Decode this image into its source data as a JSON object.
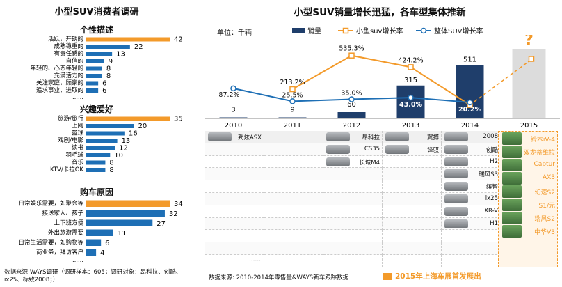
{
  "left": {
    "title": "小型SUV消费者调研",
    "personality": {
      "header": "个性描述",
      "items": [
        {
          "label": "活跃，开朗的",
          "value": 42,
          "highlight": true
        },
        {
          "label": "成熟稳重的",
          "value": 22
        },
        {
          "label": "有责任感的",
          "value": 13
        },
        {
          "label": "自信的",
          "value": 9
        },
        {
          "label": "年轻的、心态年轻的",
          "value": 8
        },
        {
          "label": "充满活力的",
          "value": 8
        },
        {
          "label": "关注家庭，顾家的",
          "value": 6
        },
        {
          "label": "追求事业，进取的",
          "value": 6
        }
      ],
      "more": "……"
    },
    "interests": {
      "header": "兴趣爱好",
      "items": [
        {
          "label": "旅游/旅行",
          "value": 35,
          "highlight": true
        },
        {
          "label": "上网",
          "value": 20
        },
        {
          "label": "篮球",
          "value": 16
        },
        {
          "label": "戏剧/电影",
          "value": 13
        },
        {
          "label": "读书",
          "value": 12
        },
        {
          "label": "羽毛球",
          "value": 10
        },
        {
          "label": "音乐",
          "value": 8
        },
        {
          "label": "KTV/卡拉OK",
          "value": 8
        }
      ],
      "more": "……"
    },
    "reasons": {
      "header": "购车原因",
      "items": [
        {
          "label": "日常娱乐需要，如聚会等",
          "value": 34,
          "highlight": true
        },
        {
          "label": "接送家人、孩子",
          "value": 32
        },
        {
          "label": "上下班方便",
          "value": 27
        },
        {
          "label": "外出旅游需要",
          "value": 11
        },
        {
          "label": "日常生活需要，如购物等",
          "value": 6
        },
        {
          "label": "商业务，拜访客户",
          "value": 4
        }
      ],
      "more": "……"
    },
    "note": "数据来源:WAYS调研（调研样本：605；调研对象：昂科拉、创酷、ix25、标致2008；）"
  },
  "chart_data": {
    "type": "bar",
    "title": "小型SUV销量增长迅猛，各车型集体推新",
    "unit_label": "单位：千辆",
    "categories": [
      "2010",
      "2011",
      "2012",
      "2013",
      "2014",
      "2015"
    ],
    "series": [
      {
        "name": "销量",
        "values": [
          3,
          9,
          60,
          315,
          511,
          null
        ],
        "labels": [
          "3",
          "9",
          "60",
          "315",
          "511",
          ""
        ],
        "color": "#1f3e6b"
      },
      {
        "name": "小型suv增长率",
        "values": [
          null,
          213.2,
          535.3,
          424.2,
          62.3,
          null
        ],
        "labels": [
          "",
          "213.2%",
          "535.3%",
          "424.2%",
          "",
          ""
        ],
        "color": "#f39a2a"
      },
      {
        "name": "整体SUV增长率",
        "values": [
          87.2,
          25.5,
          35.0,
          43.0,
          20.2,
          null
        ],
        "labels": [
          "87.2%",
          "25.5%",
          "35.0%",
          "43.0%",
          "20.2%",
          ""
        ],
        "color": "#1e6fb5"
      }
    ],
    "forecast_mark": "?",
    "legend_position": "top",
    "colors": {
      "forecast_bar": "#dcdcdc"
    }
  },
  "models": {
    "2012": [
      {
        "name": "劲炫ASX"
      }
    ],
    "2013": [
      {
        "name": "昂科拉"
      },
      {
        "name": "CS35"
      },
      {
        "name": "长城M4"
      }
    ],
    "2013b": [
      {
        "name": "翼搏"
      },
      {
        "name": "锋驭"
      }
    ],
    "2014": [
      {
        "name": "2008"
      },
      {
        "name": "创酷"
      },
      {
        "name": "H2"
      },
      {
        "name": "瑞风S3"
      },
      {
        "name": "缤智"
      },
      {
        "name": "ix25"
      },
      {
        "name": "XR-V"
      },
      {
        "name": "H1"
      }
    ],
    "2015": [
      {
        "name": "铃木iV-4"
      },
      {
        "name": "双龙蒂维拉"
      },
      {
        "name": "Captur"
      },
      {
        "name": "AX3"
      },
      {
        "name": "幻速S2"
      },
      {
        "name": "S1/元"
      },
      {
        "name": "瑞风S2"
      },
      {
        "name": "中华V3"
      }
    ],
    "more": "……"
  },
  "right_note": "数据来源: 2010-2014年零售量&WAYS新车跟踪数据",
  "highlight_text": "2015年上海车展首发展出"
}
